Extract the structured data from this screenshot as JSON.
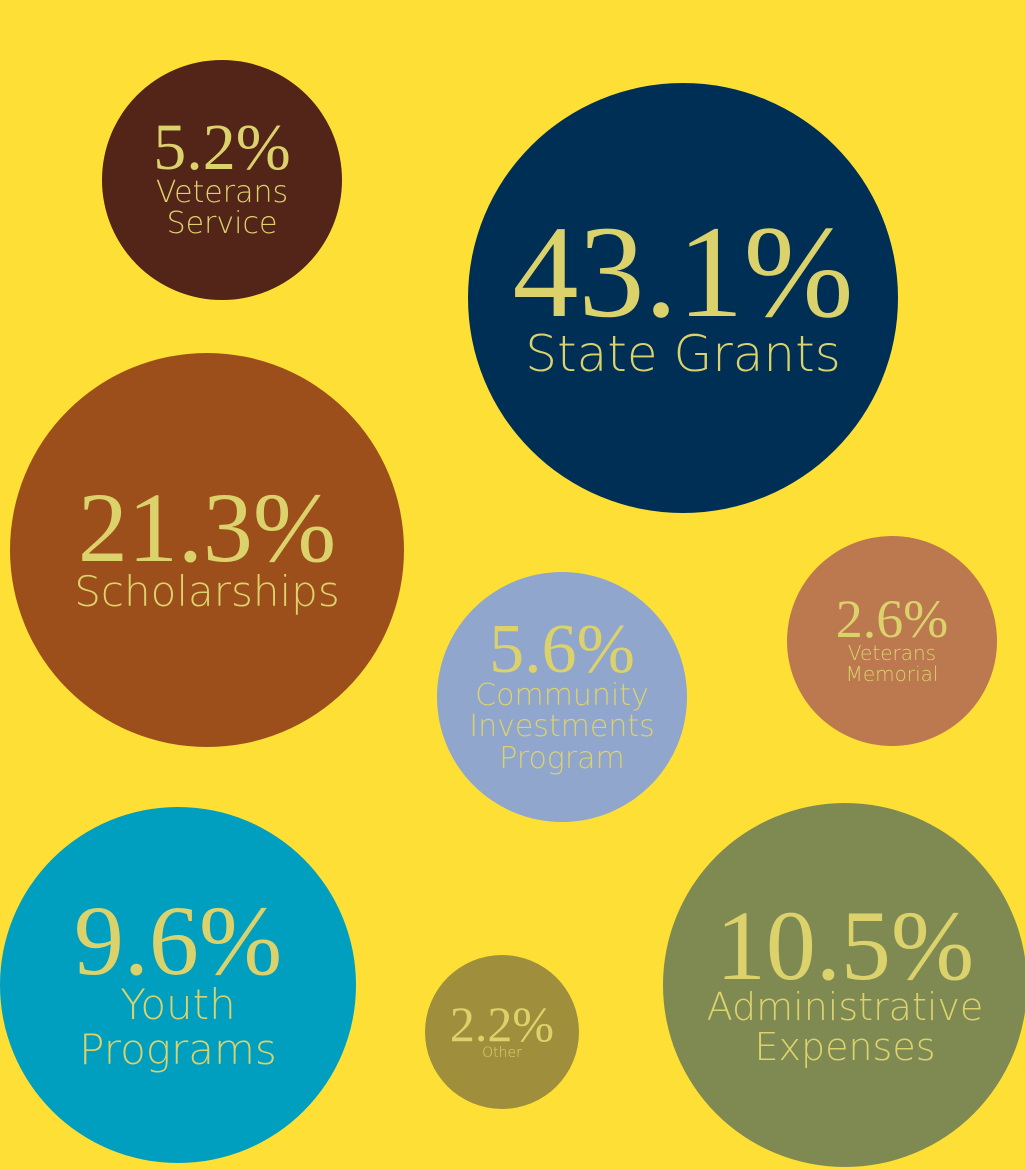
{
  "chart_data": {
    "type": "bubble",
    "categories": [
      "Veterans Service",
      "State Grants",
      "Scholarships",
      "Community Investments Program",
      "Veterans Memorial",
      "Youth Programs",
      "Other",
      "Administrative Expenses"
    ],
    "values": [
      5.2,
      43.1,
      21.3,
      5.6,
      2.6,
      9.6,
      2.2,
      10.5
    ],
    "value_labels": [
      "5.2%",
      "43.1%",
      "21.3%",
      "5.6%",
      "2.6%",
      "9.6%",
      "2.2%",
      "10.5%"
    ],
    "colors": [
      "#532418",
      "#002f55",
      "#9d4f1b",
      "#91a6cc",
      "#bc784e",
      "#009ebf",
      "#9f8f3c",
      "#7f8a52"
    ]
  }
}
